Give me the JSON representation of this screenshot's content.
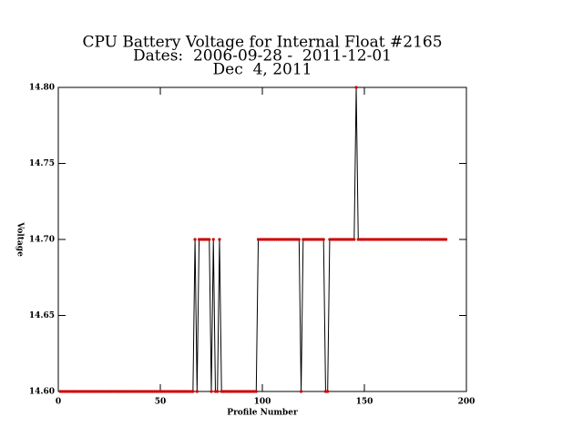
{
  "chart_data": {
    "type": "line",
    "title": [
      "CPU Battery Voltage for Internal Float #2165",
      "Dates:  2006-09-28 -  2011-12-01",
      "Dec  4, 2011"
    ],
    "xlabel": "Profile Number",
    "ylabel": "Voltage",
    "line_color": "#000000",
    "marker_color": "#cc0000",
    "xlim": [
      0,
      200
    ],
    "xticks": [
      0,
      50,
      100,
      150,
      200
    ],
    "ylim": [
      14.6,
      14.8
    ],
    "yticks": [
      {
        "value": 14.6,
        "label": "14.60"
      },
      14.65,
      {
        "value": 14.7,
        "label": "14.70"
      },
      14.75,
      {
        "value": 14.8,
        "label": "14.80"
      }
    ],
    "x": [
      1,
      2,
      3,
      4,
      5,
      6,
      7,
      8,
      9,
      10,
      11,
      12,
      13,
      14,
      15,
      16,
      17,
      18,
      19,
      20,
      21,
      22,
      23,
      24,
      25,
      26,
      27,
      28,
      29,
      30,
      31,
      32,
      33,
      34,
      35,
      36,
      37,
      38,
      39,
      40,
      41,
      42,
      43,
      44,
      45,
      46,
      47,
      48,
      49,
      50,
      51,
      52,
      53,
      54,
      55,
      56,
      57,
      58,
      59,
      60,
      61,
      62,
      63,
      64,
      65,
      66,
      67,
      68,
      69,
      70,
      71,
      72,
      73,
      74,
      75,
      76,
      77,
      78,
      79,
      80,
      81,
      82,
      83,
      84,
      85,
      86,
      87,
      88,
      89,
      90,
      91,
      92,
      93,
      94,
      95,
      96,
      97,
      98,
      99,
      100,
      101,
      102,
      103,
      104,
      105,
      106,
      107,
      108,
      109,
      110,
      111,
      112,
      113,
      114,
      115,
      116,
      117,
      118,
      119,
      120,
      121,
      122,
      123,
      124,
      125,
      126,
      127,
      128,
      129,
      130,
      131,
      132,
      133,
      134,
      135,
      136,
      137,
      138,
      139,
      140,
      141,
      142,
      143,
      144,
      145,
      146,
      147,
      148,
      149,
      150,
      151,
      152,
      153,
      154,
      155,
      156,
      157,
      158,
      159,
      160,
      161,
      162,
      163,
      164,
      165,
      166,
      167,
      168,
      169,
      170,
      171,
      172,
      173,
      174,
      175,
      176,
      177,
      178,
      179,
      180,
      181,
      182,
      183,
      184,
      185,
      186,
      187,
      188,
      189,
      190
    ],
    "values": [
      14.6,
      14.6,
      14.6,
      14.6,
      14.6,
      14.6,
      14.6,
      14.6,
      14.6,
      14.6,
      14.6,
      14.6,
      14.6,
      14.6,
      14.6,
      14.6,
      14.6,
      14.6,
      14.6,
      14.6,
      14.6,
      14.6,
      14.6,
      14.6,
      14.6,
      14.6,
      14.6,
      14.6,
      14.6,
      14.6,
      14.6,
      14.6,
      14.6,
      14.6,
      14.6,
      14.6,
      14.6,
      14.6,
      14.6,
      14.6,
      14.6,
      14.6,
      14.6,
      14.6,
      14.6,
      14.6,
      14.6,
      14.6,
      14.6,
      14.6,
      14.6,
      14.6,
      14.6,
      14.6,
      14.6,
      14.6,
      14.6,
      14.6,
      14.6,
      14.6,
      14.6,
      14.6,
      14.6,
      14.6,
      14.6,
      14.6,
      14.7,
      14.6,
      14.7,
      14.7,
      14.7,
      14.7,
      14.7,
      14.7,
      14.6,
      14.7,
      14.6,
      14.6,
      14.7,
      14.6,
      14.6,
      14.6,
      14.6,
      14.6,
      14.6,
      14.6,
      14.6,
      14.6,
      14.6,
      14.6,
      14.6,
      14.6,
      14.6,
      14.6,
      14.6,
      14.6,
      14.6,
      14.7,
      14.7,
      14.7,
      14.7,
      14.7,
      14.7,
      14.7,
      14.7,
      14.7,
      14.7,
      14.7,
      14.7,
      14.7,
      14.7,
      14.7,
      14.7,
      14.7,
      14.7,
      14.7,
      14.7,
      14.7,
      14.6,
      14.7,
      14.7,
      14.7,
      14.7,
      14.7,
      14.7,
      14.7,
      14.7,
      14.7,
      14.7,
      14.7,
      14.6,
      14.6,
      14.7,
      14.7,
      14.7,
      14.7,
      14.7,
      14.7,
      14.7,
      14.7,
      14.7,
      14.7,
      14.7,
      14.7,
      14.7,
      14.8,
      14.7,
      14.7,
      14.7,
      14.7,
      14.7,
      14.7,
      14.7,
      14.7,
      14.7,
      14.7,
      14.7,
      14.7,
      14.7,
      14.7,
      14.7,
      14.7,
      14.7,
      14.7,
      14.7,
      14.7,
      14.7,
      14.7,
      14.7,
      14.7,
      14.7,
      14.7,
      14.7,
      14.7,
      14.7,
      14.7,
      14.7,
      14.7,
      14.7,
      14.7,
      14.7,
      14.7,
      14.7,
      14.7,
      14.7,
      14.7,
      14.7,
      14.7,
      14.7,
      14.7
    ]
  }
}
